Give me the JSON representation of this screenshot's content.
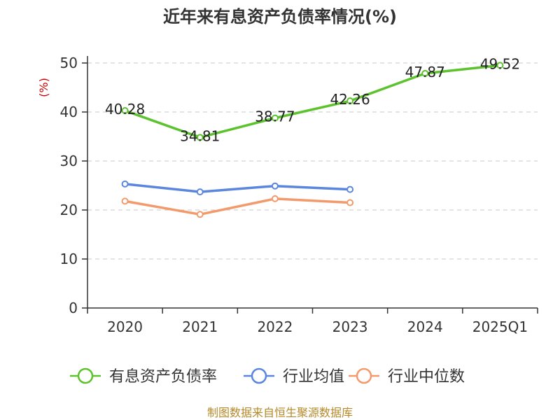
{
  "chart_data": {
    "type": "line",
    "title": "近年来有息资产负债率情况(%)",
    "ylabel": "(%)",
    "xlabel": "",
    "categories": [
      "2020",
      "2021",
      "2022",
      "2023",
      "2024",
      "2025Q1"
    ],
    "ylim": [
      0,
      50
    ],
    "yticks": [
      0,
      10,
      20,
      30,
      40,
      50
    ],
    "grid": true,
    "legend_position": "bottom",
    "series": [
      {
        "name": "有息资产负债率",
        "color": "#5cc22d",
        "values": [
          40.28,
          34.81,
          38.77,
          42.26,
          47.87,
          49.52
        ],
        "labels": [
          "40.28",
          "34.81",
          "38.77",
          "42.26",
          "47.87",
          "49.52"
        ]
      },
      {
        "name": "行业均值",
        "color": "#5b86dd",
        "values": [
          25.3,
          23.7,
          24.9,
          24.2,
          null,
          null
        ]
      },
      {
        "name": "行业中位数",
        "color": "#f39a6c",
        "values": [
          21.8,
          19.1,
          22.3,
          21.5,
          null,
          null
        ]
      }
    ],
    "axis_color": "#333333",
    "grid_color": "#c8c8c8",
    "ylabel_color": "#cc0000"
  },
  "footer": {
    "source": "制图数据来自恒生聚源数据库",
    "color": "#b5892a"
  }
}
